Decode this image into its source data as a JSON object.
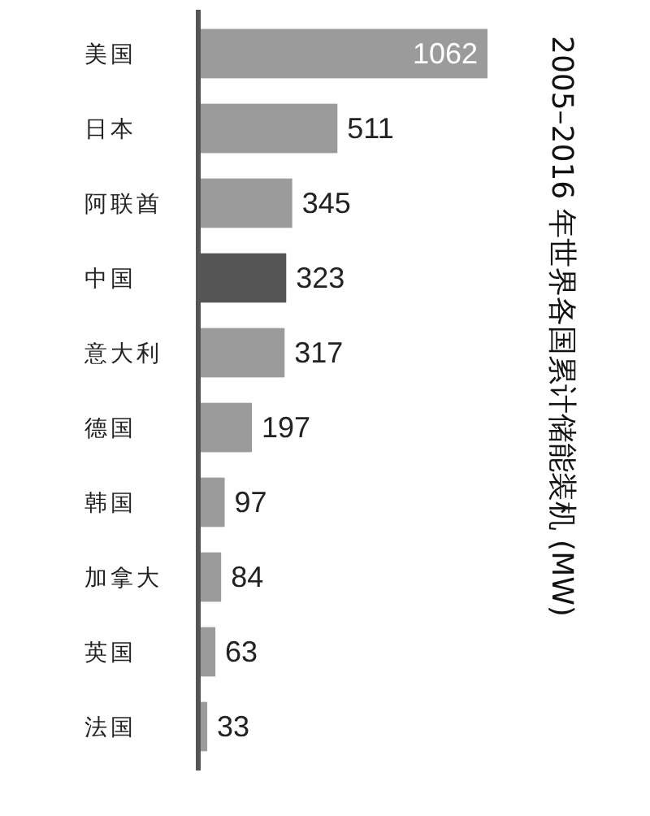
{
  "chart_data": {
    "type": "bar",
    "orientation": "horizontal",
    "title": "2005–2016 年世界各国累计储能装机 (MW)",
    "categories": [
      "美国",
      "日本",
      "阿联酋",
      "中国",
      "意大利",
      "德国",
      "韩国",
      "加拿大",
      "英国",
      "法国"
    ],
    "values": [
      1062,
      511,
      345,
      323,
      317,
      197,
      97,
      84,
      63,
      33
    ],
    "colors": [
      "#9b9b9b",
      "#9b9b9b",
      "#9b9b9b",
      "#555555",
      "#9b9b9b",
      "#9b9b9b",
      "#9b9b9b",
      "#9b9b9b",
      "#9b9b9b",
      "#9b9b9b"
    ],
    "data_labels": true
  }
}
